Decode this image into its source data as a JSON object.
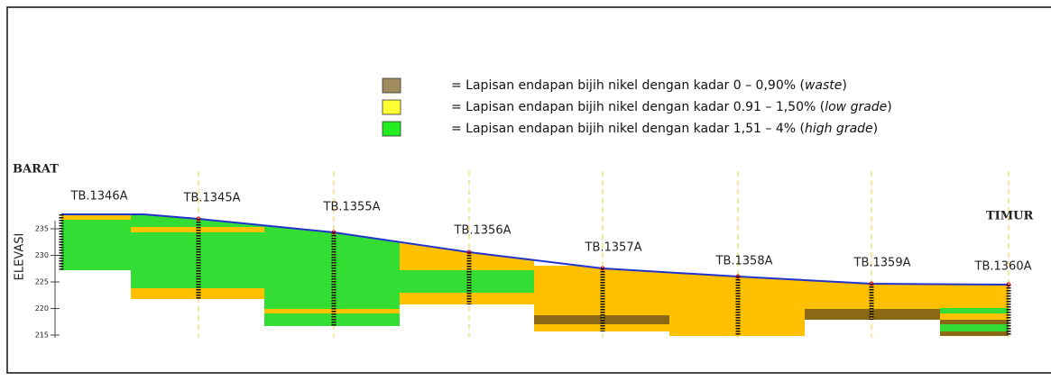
{
  "legend": [
    {
      "prefix": "= Lapisan endapan bijih nikel dengan kadar 0 – 0,90% (",
      "grade": "waste",
      "suffix": ")",
      "color": "#a08c5c"
    },
    {
      "prefix": "= Lapisan endapan bijih nikel dengan kadar 0.91 – 1,50% (",
      "grade": "low grade",
      "suffix": ")",
      "color": "#ffff33"
    },
    {
      "prefix": "= Lapisan endapan bijih nikel dengan kadar 1,51 – 4% (",
      "grade": "high grade",
      "suffix": ")",
      "color": "#22ee22"
    }
  ],
  "west": "BARAT",
  "east": "TIMUR",
  "axis": {
    "label": "ELEVASI",
    "ticks": [
      235,
      230,
      225,
      220,
      215
    ]
  },
  "boreholes": [
    "TB.1346A",
    "TB.1345A",
    "TB.1355A",
    "TB.1356A",
    "TB.1357A",
    "TB.1358A",
    "TB.1359A",
    "TB.1360A"
  ]
}
